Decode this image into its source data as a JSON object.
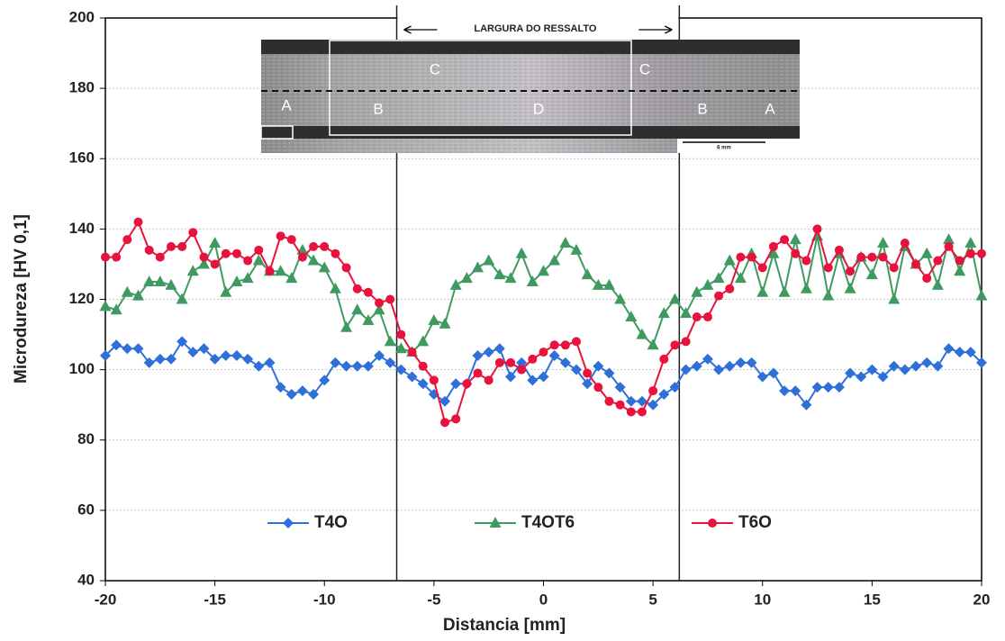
{
  "chart_data": {
    "type": "line",
    "x_label": "Distancia [mm]",
    "y_label": "Microdureza [HV 0,1]",
    "x": [
      -20,
      -19.5,
      -19,
      -18.5,
      -18,
      -17.5,
      -17,
      -16.5,
      -16,
      -15.5,
      -15,
      -14.5,
      -14,
      -13.5,
      -13,
      -12.5,
      -12,
      -11.5,
      -11,
      -10.5,
      -10,
      -9.5,
      -9,
      -8.5,
      -8,
      -7.5,
      -7,
      -6.5,
      -6,
      -5.5,
      -5,
      -4.5,
      -4,
      -3.5,
      -3,
      -2.5,
      -2,
      -1.5,
      -1,
      -0.5,
      0,
      0.5,
      1,
      1.5,
      2,
      2.5,
      3,
      3.5,
      4,
      4.5,
      5,
      5.5,
      6,
      6.5,
      7,
      7.5,
      8,
      8.5,
      9,
      9.5,
      10,
      10.5,
      11,
      11.5,
      12,
      12.5,
      13,
      13.5,
      14,
      14.5,
      15,
      15.5,
      16,
      16.5,
      17,
      17.5,
      18,
      18.5,
      19,
      19.5,
      20
    ],
    "series": [
      {
        "name": "T4O",
        "color": "#2f6fd8",
        "marker": "diamond",
        "values": [
          104,
          107,
          106,
          106,
          102,
          103,
          103,
          108,
          105,
          106,
          103,
          104,
          104,
          103,
          101,
          102,
          95,
          93,
          94,
          93,
          97,
          102,
          101,
          101,
          101,
          104,
          102,
          100,
          98,
          96,
          93,
          91,
          96,
          96,
          104,
          105,
          106,
          98,
          102,
          97,
          98,
          104,
          102,
          100,
          96,
          101,
          99,
          95,
          91,
          91,
          90,
          93,
          95,
          100,
          101,
          103,
          100,
          101,
          102,
          102,
          98,
          99,
          94,
          94,
          90,
          95,
          95,
          95,
          99,
          98,
          100,
          98,
          101,
          100,
          101,
          102,
          101,
          106,
          105,
          105,
          102
        ]
      },
      {
        "name": "T4OT6",
        "color": "#3f9a62",
        "marker": "triangle",
        "values": [
          118,
          117,
          122,
          121,
          125,
          125,
          124,
          120,
          128,
          130,
          136,
          122,
          125,
          126,
          131,
          128,
          128,
          126,
          134,
          131,
          129,
          123,
          112,
          117,
          114,
          117,
          108,
          106,
          105,
          108,
          114,
          113,
          124,
          126,
          129,
          131,
          127,
          126,
          133,
          125,
          128,
          131,
          136,
          134,
          127,
          124,
          124,
          120,
          115,
          110,
          107,
          116,
          120,
          116,
          122,
          124,
          126,
          131,
          126,
          133,
          122,
          133,
          122,
          137,
          123,
          138,
          121,
          133,
          123,
          132,
          127,
          136,
          120,
          135,
          130,
          133,
          124,
          137,
          128,
          136,
          121
        ]
      },
      {
        "name": "T6O",
        "color": "#e8123c",
        "marker": "circle",
        "values": [
          132,
          132,
          137,
          142,
          134,
          132,
          135,
          135,
          139,
          132,
          130,
          133,
          133,
          131,
          134,
          128,
          138,
          137,
          132,
          135,
          135,
          133,
          129,
          123,
          122,
          119,
          120,
          110,
          105,
          101,
          97,
          85,
          86,
          96,
          99,
          97,
          102,
          102,
          100,
          103,
          105,
          107,
          107,
          108,
          99,
          95,
          91,
          90,
          88,
          88,
          94,
          103,
          107,
          108,
          115,
          115,
          121,
          123,
          132,
          132,
          129,
          135,
          137,
          133,
          131,
          140,
          129,
          134,
          128,
          132,
          132,
          132,
          129,
          136,
          130,
          126,
          131,
          135,
          131,
          133,
          133
        ]
      }
    ],
    "xlim": [
      -20,
      20
    ],
    "xticks": [
      -20,
      -15,
      -10,
      -5,
      0,
      5,
      10,
      15,
      20
    ],
    "ylim": [
      40,
      200
    ],
    "yticks": [
      40,
      60,
      80,
      100,
      120,
      140,
      160,
      180,
      200
    ],
    "grid": true,
    "vlines": [
      -6.7,
      6.2
    ],
    "legend": "bottom",
    "annotations": {
      "width": "LARGURA DO RESSALTO",
      "zones": [
        "A",
        "B",
        "C",
        "D",
        "C",
        "B",
        "A"
      ],
      "scale": "6 mm"
    }
  }
}
